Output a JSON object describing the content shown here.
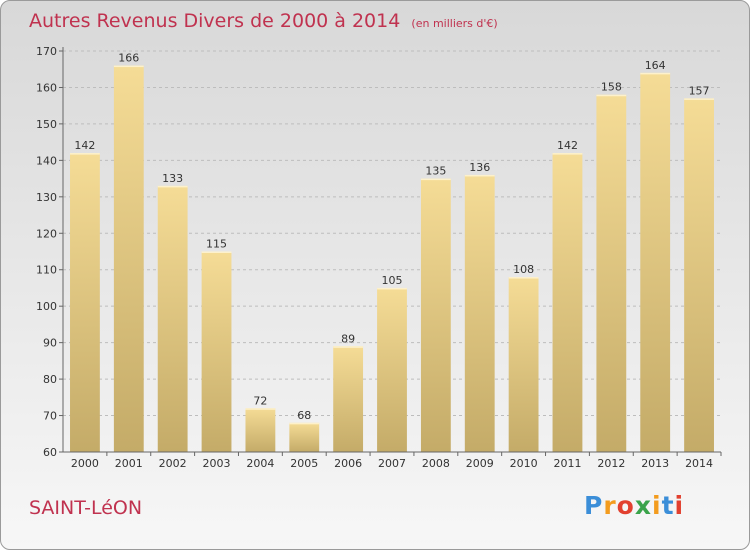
{
  "title": "Autres Revenus Divers de 2000 à 2014",
  "title_unit": "(en milliers d'€)",
  "city": "SAINT-LéON",
  "logo": {
    "letters": [
      "P",
      "r",
      "o",
      "x",
      "i",
      "t",
      "i"
    ],
    "colors": [
      "#3b8ed8",
      "#f39c1e",
      "#e2402f",
      "#3aa34a",
      "#f39c1e",
      "#3b8ed8",
      "#e2402f"
    ]
  },
  "colors": {
    "title": "#c0324f",
    "bar_top": "#f5dc96",
    "bar_bottom": "#c4ab68",
    "grid": "#bdbdbd"
  },
  "chart_data": {
    "type": "bar",
    "title": "Autres Revenus Divers de 2000 à 2014",
    "categories": [
      "2000",
      "2001",
      "2002",
      "2003",
      "2004",
      "2005",
      "2006",
      "2007",
      "2008",
      "2009",
      "2010",
      "2011",
      "2012",
      "2013",
      "2014"
    ],
    "values": [
      142,
      166,
      133,
      115,
      72,
      68,
      89,
      105,
      135,
      136,
      108,
      142,
      158,
      164,
      157
    ],
    "y_ticks": [
      60,
      70,
      80,
      90,
      100,
      110,
      120,
      130,
      140,
      150,
      160,
      170
    ],
    "ylim": [
      60,
      170
    ],
    "grid": true,
    "xlabel": "",
    "ylabel": ""
  }
}
